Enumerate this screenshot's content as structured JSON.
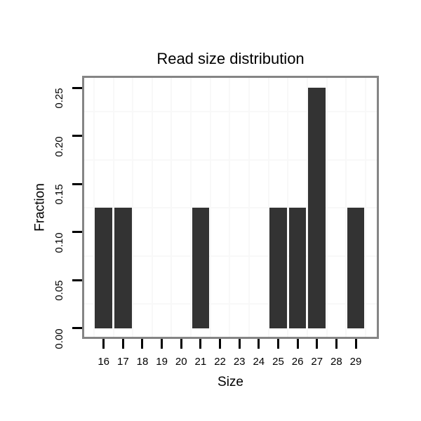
{
  "chart_data": {
    "type": "bar",
    "title": "Read size distribution",
    "xlabel": "Size",
    "ylabel": "Fraction",
    "categories": [
      16,
      17,
      18,
      19,
      20,
      21,
      22,
      23,
      24,
      25,
      26,
      27,
      28,
      29
    ],
    "values": [
      0.125,
      0.125,
      0,
      0,
      0,
      0.125,
      0,
      0,
      0,
      0.125,
      0.125,
      0.25,
      0,
      0.125
    ],
    "x_tick_labels": [
      "16",
      "17",
      "18",
      "19",
      "20",
      "21",
      "22",
      "23",
      "24",
      "25",
      "26",
      "27",
      "28",
      "29"
    ],
    "y_tick_values": [
      0,
      0.05,
      0.1,
      0.15,
      0.2,
      0.25
    ],
    "y_tick_labels": [
      "0.00",
      "0.05",
      "0.10",
      "0.15",
      "0.20",
      "0.25"
    ],
    "ylim": [
      0,
      0.25
    ],
    "grid": "minor-only",
    "legend": "none",
    "colors": {
      "bar": "#333333",
      "panel_border": "#858585",
      "grid_minor": "#f8f8f8",
      "tick": "#000000",
      "text": "#000000",
      "background": "#ffffff"
    }
  }
}
